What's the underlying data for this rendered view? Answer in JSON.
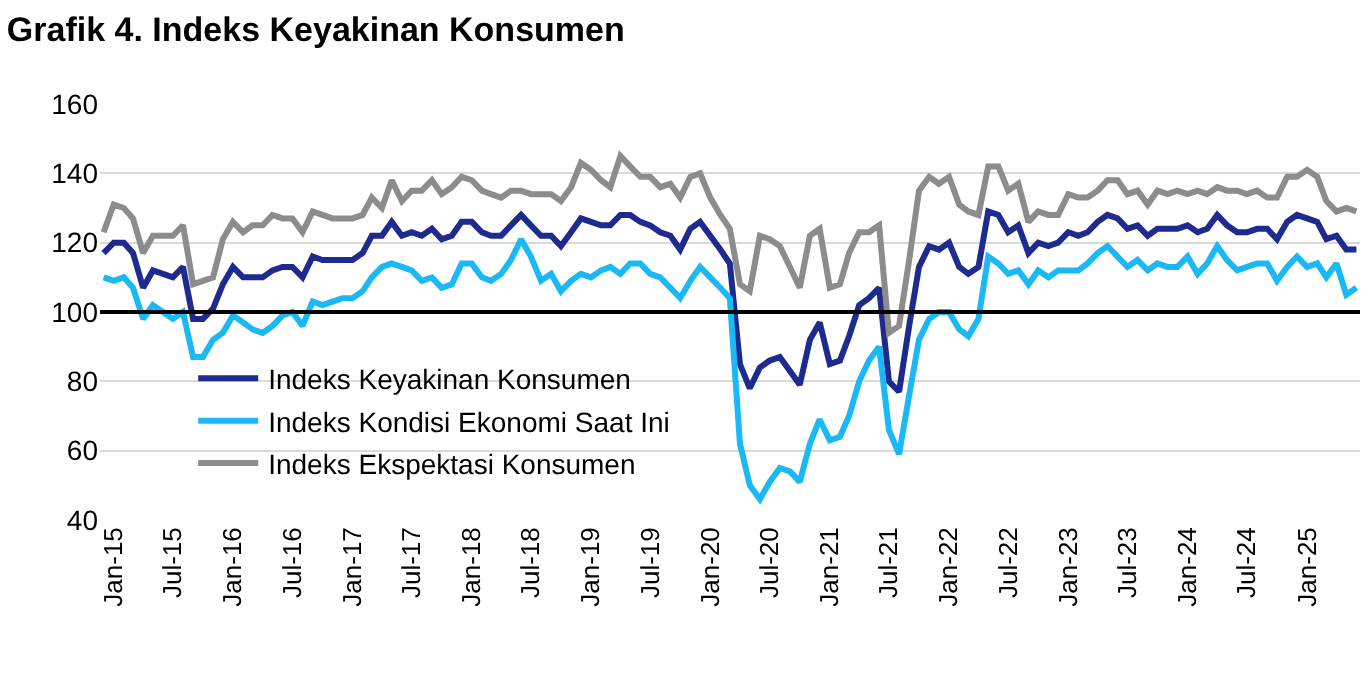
{
  "chart_data": {
    "type": "line",
    "title": "Grafik 4. Indeks Keyakinan Konsumen",
    "x": [
      "2014-12",
      "2015-01",
      "2015-02",
      "2015-03",
      "2015-04",
      "2015-05",
      "2015-06",
      "2015-07",
      "2015-08",
      "2015-09",
      "2015-10",
      "2015-11",
      "2015-12",
      "2016-01",
      "2016-02",
      "2016-03",
      "2016-04",
      "2016-05",
      "2016-06",
      "2016-07",
      "2016-08",
      "2016-09",
      "2016-10",
      "2016-11",
      "2016-12",
      "2017-01",
      "2017-02",
      "2017-03",
      "2017-04",
      "2017-05",
      "2017-06",
      "2017-07",
      "2017-08",
      "2017-09",
      "2017-10",
      "2017-11",
      "2017-12",
      "2018-01",
      "2018-02",
      "2018-03",
      "2018-04",
      "2018-05",
      "2018-06",
      "2018-07",
      "2018-08",
      "2018-09",
      "2018-10",
      "2018-11",
      "2018-12",
      "2019-01",
      "2019-02",
      "2019-03",
      "2019-04",
      "2019-05",
      "2019-06",
      "2019-07",
      "2019-08",
      "2019-09",
      "2019-10",
      "2019-11",
      "2019-12",
      "2020-01",
      "2020-02",
      "2020-03",
      "2020-04",
      "2020-05",
      "2020-06",
      "2020-07",
      "2020-08",
      "2020-09",
      "2020-10",
      "2020-11",
      "2020-12",
      "2021-01",
      "2021-02",
      "2021-03",
      "2021-04",
      "2021-05",
      "2021-06",
      "2021-07",
      "2021-08",
      "2021-09",
      "2021-10",
      "2021-11",
      "2021-12",
      "2022-01",
      "2022-02",
      "2022-03",
      "2022-04",
      "2022-05",
      "2022-06",
      "2022-07",
      "2022-08",
      "2022-09",
      "2022-10",
      "2022-11",
      "2022-12",
      "2023-01",
      "2023-02",
      "2023-03",
      "2023-04",
      "2023-05",
      "2023-06",
      "2023-07",
      "2023-08",
      "2023-09",
      "2023-10",
      "2023-11",
      "2023-12",
      "2024-01",
      "2024-02",
      "2024-03",
      "2024-04",
      "2024-05",
      "2024-06",
      "2024-07",
      "2024-08",
      "2024-09",
      "2024-10",
      "2024-11",
      "2024-12",
      "2025-01",
      "2025-02",
      "2025-03",
      "2025-04",
      "2025-05",
      "2025-06"
    ],
    "series": [
      {
        "name": "Indeks Keyakinan Konsumen",
        "color": "#1f2a8f",
        "values": [
          117,
          120,
          120,
          117,
          107,
          112,
          111,
          110,
          113,
          98,
          98,
          101,
          108,
          113,
          110,
          110,
          110,
          112,
          113,
          113,
          110,
          116,
          115,
          115,
          115,
          115,
          117,
          122,
          122,
          126,
          122,
          123,
          122,
          124,
          121,
          122,
          126,
          126,
          123,
          122,
          122,
          125,
          128,
          125,
          122,
          122,
          119,
          123,
          127,
          126,
          125,
          125,
          128,
          128,
          126,
          125,
          123,
          122,
          118,
          124,
          126,
          122,
          118,
          114,
          85,
          78,
          84,
          86,
          87,
          83,
          79,
          92,
          97,
          85,
          86,
          93,
          102,
          104,
          107,
          80,
          77,
          96,
          113,
          119,
          118,
          120,
          113,
          111,
          113,
          129,
          128,
          123,
          125,
          117,
          120,
          119,
          120,
          123,
          122,
          123,
          126,
          128,
          127,
          124,
          125,
          122,
          124,
          124,
          124,
          125,
          123,
          124,
          128,
          125,
          123,
          123,
          124,
          124,
          121,
          126,
          128,
          127,
          126,
          121,
          122,
          118,
          118
        ]
      },
      {
        "name": "Indeks Kondisi Ekonomi Saat Ini",
        "color": "#1ab8f5",
        "values": [
          110,
          109,
          110,
          107,
          98,
          102,
          100,
          98,
          100,
          87,
          87,
          92,
          94,
          99,
          97,
          95,
          94,
          96,
          99,
          100,
          96,
          103,
          102,
          103,
          104,
          104,
          106,
          110,
          113,
          114,
          113,
          112,
          109,
          110,
          107,
          108,
          114,
          114,
          110,
          109,
          111,
          115,
          121,
          116,
          109,
          111,
          106,
          109,
          111,
          110,
          112,
          113,
          111,
          114,
          114,
          111,
          110,
          107,
          104,
          109,
          113,
          110,
          107,
          104,
          62,
          50,
          46,
          51,
          55,
          54,
          51,
          62,
          69,
          63,
          64,
          70,
          80,
          86,
          90,
          66,
          59,
          76,
          92,
          98,
          100,
          100,
          95,
          93,
          98,
          116,
          114,
          111,
          112,
          108,
          112,
          110,
          112,
          112,
          112,
          114,
          117,
          119,
          116,
          113,
          115,
          112,
          114,
          113,
          113,
          116,
          111,
          114,
          119,
          115,
          112,
          113,
          114,
          114,
          109,
          113,
          116,
          113,
          114,
          110,
          114,
          105,
          107
        ]
      },
      {
        "name": "Indeks Ekspektasi Konsumen",
        "color": "#8c8c8c",
        "values": [
          123,
          131,
          130,
          127,
          117,
          122,
          122,
          122,
          125,
          108,
          109,
          110,
          121,
          126,
          123,
          125,
          125,
          128,
          127,
          127,
          123,
          129,
          128,
          127,
          127,
          127,
          128,
          133,
          130,
          138,
          132,
          135,
          135,
          138,
          134,
          136,
          139,
          138,
          135,
          134,
          133,
          135,
          135,
          134,
          134,
          134,
          132,
          136,
          143,
          141,
          138,
          136,
          145,
          142,
          139,
          139,
          136,
          137,
          133,
          139,
          140,
          133,
          128,
          124,
          108,
          106,
          122,
          121,
          119,
          113,
          107,
          122,
          124,
          107,
          108,
          117,
          123,
          123,
          125,
          94,
          96,
          115,
          135,
          139,
          137,
          139,
          131,
          129,
          128,
          142,
          142,
          135,
          137,
          126,
          129,
          128,
          128,
          134,
          133,
          133,
          135,
          138,
          138,
          134,
          135,
          131,
          135,
          134,
          135,
          134,
          135,
          134,
          136,
          135,
          135,
          134,
          135,
          133,
          133,
          139,
          139,
          141,
          139,
          132,
          129,
          130,
          129
        ]
      }
    ],
    "xlim": [
      "2014-11-20",
      "2025-06-12"
    ],
    "xticks": [
      {
        "value": "2015-01",
        "label": "Jan-15"
      },
      {
        "value": "2015-07",
        "label": "Jul-15"
      },
      {
        "value": "2016-01",
        "label": "Jan-16"
      },
      {
        "value": "2016-07",
        "label": "Jul-16"
      },
      {
        "value": "2017-01",
        "label": "Jan-17"
      },
      {
        "value": "2017-07",
        "label": "Jul-17"
      },
      {
        "value": "2018-01",
        "label": "Jan-18"
      },
      {
        "value": "2018-07",
        "label": "Jul-18"
      },
      {
        "value": "2019-01",
        "label": "Jan-19"
      },
      {
        "value": "2019-07",
        "label": "Jul-19"
      },
      {
        "value": "2020-01",
        "label": "Jan-20"
      },
      {
        "value": "2020-07",
        "label": "Jul-20"
      },
      {
        "value": "2021-01",
        "label": "Jan-21"
      },
      {
        "value": "2021-07",
        "label": "Jul-21"
      },
      {
        "value": "2022-01",
        "label": "Jan-22"
      },
      {
        "value": "2022-07",
        "label": "Jul-22"
      },
      {
        "value": "2023-01",
        "label": "Jan-23"
      },
      {
        "value": "2023-07",
        "label": "Jul-23"
      },
      {
        "value": "2024-01",
        "label": "Jan-24"
      },
      {
        "value": "2024-07",
        "label": "Jul-24"
      },
      {
        "value": "2025-01",
        "label": "Jan-25"
      }
    ],
    "ylim": [
      40,
      160
    ],
    "yticks": [
      40,
      60,
      80,
      100,
      120,
      140,
      160
    ],
    "ref_lines": [
      {
        "axis": "y",
        "value": 100,
        "color": "#000000"
      }
    ],
    "grid": "y",
    "legend": "bottom left",
    "marker": "none",
    "line_style": "solid"
  }
}
